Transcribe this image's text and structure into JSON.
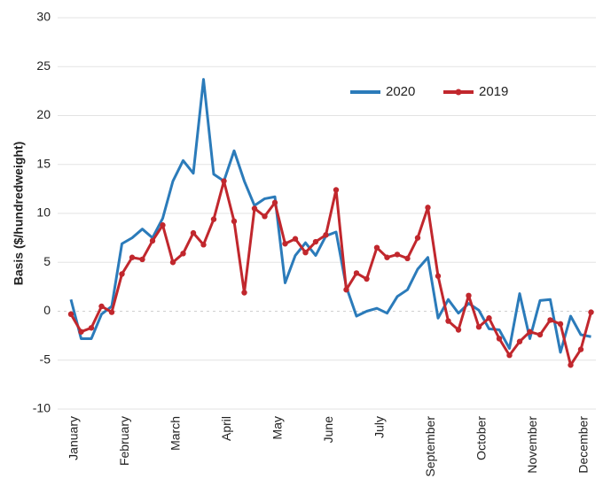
{
  "chart_data": {
    "type": "line",
    "y_label": "Basis ($/hundredweight)",
    "categories": [
      "January",
      null,
      null,
      null,
      null,
      "February",
      null,
      null,
      null,
      null,
      "March",
      null,
      null,
      null,
      null,
      "April",
      null,
      null,
      null,
      null,
      "May",
      null,
      null,
      null,
      null,
      "June",
      null,
      null,
      null,
      null,
      "July",
      null,
      null,
      null,
      null,
      "September",
      null,
      null,
      null,
      null,
      "October",
      null,
      null,
      null,
      null,
      "November",
      null,
      null,
      null,
      null,
      "December",
      null
    ],
    "series": [
      {
        "name": "2020",
        "color": "#2b7bba",
        "markers": false,
        "values": [
          1.2,
          -2.8,
          -2.8,
          -0.3,
          0.5,
          6.9,
          7.5,
          8.4,
          7.5,
          9.5,
          13.3,
          15.4,
          14.1,
          23.7,
          14,
          13.3,
          16.4,
          13.3,
          10.8,
          11.5,
          11.7,
          2.9,
          5.7,
          7.0,
          5.7,
          7.7,
          8.1,
          2.5,
          -0.5,
          0,
          0.3,
          -0.2,
          1.5,
          2.2,
          4.3,
          5.5,
          -0.7,
          1.2,
          -0.2,
          0.8,
          0.1,
          -1.8,
          -1.9,
          -3.8,
          1.8,
          -2.8,
          1.1,
          1.2,
          -4.2,
          -0.5,
          -2.4,
          -2.6
        ]
      },
      {
        "name": "2019",
        "color": "#c1272d",
        "markers": true,
        "values": [
          -0.3,
          -2.1,
          -1.7,
          0.5,
          -0.1,
          3.8,
          5.5,
          5.3,
          7.2,
          8.8,
          5.0,
          5.9,
          8.0,
          6.8,
          9.4,
          13.3,
          9.2,
          1.9,
          10.5,
          9.7,
          11.1,
          6.9,
          7.4,
          6.0,
          7.1,
          7.8,
          12.4,
          2.2,
          3.9,
          3.3,
          6.5,
          5.5,
          5.8,
          5.4,
          7.5,
          10.6,
          3.6,
          -1.0,
          -1.9,
          1.6,
          -1.6,
          -0.7,
          -2.8,
          -4.5,
          -3.1,
          -2.1,
          -2.4,
          -0.9,
          -1.3,
          -5.5,
          -3.9,
          -0.1
        ]
      }
    ],
    "ylim": [
      -10,
      30
    ],
    "yticks": [
      -10,
      -5,
      0,
      5,
      10,
      15,
      20,
      25,
      30
    ],
    "grid": true,
    "legend": "top-right"
  }
}
